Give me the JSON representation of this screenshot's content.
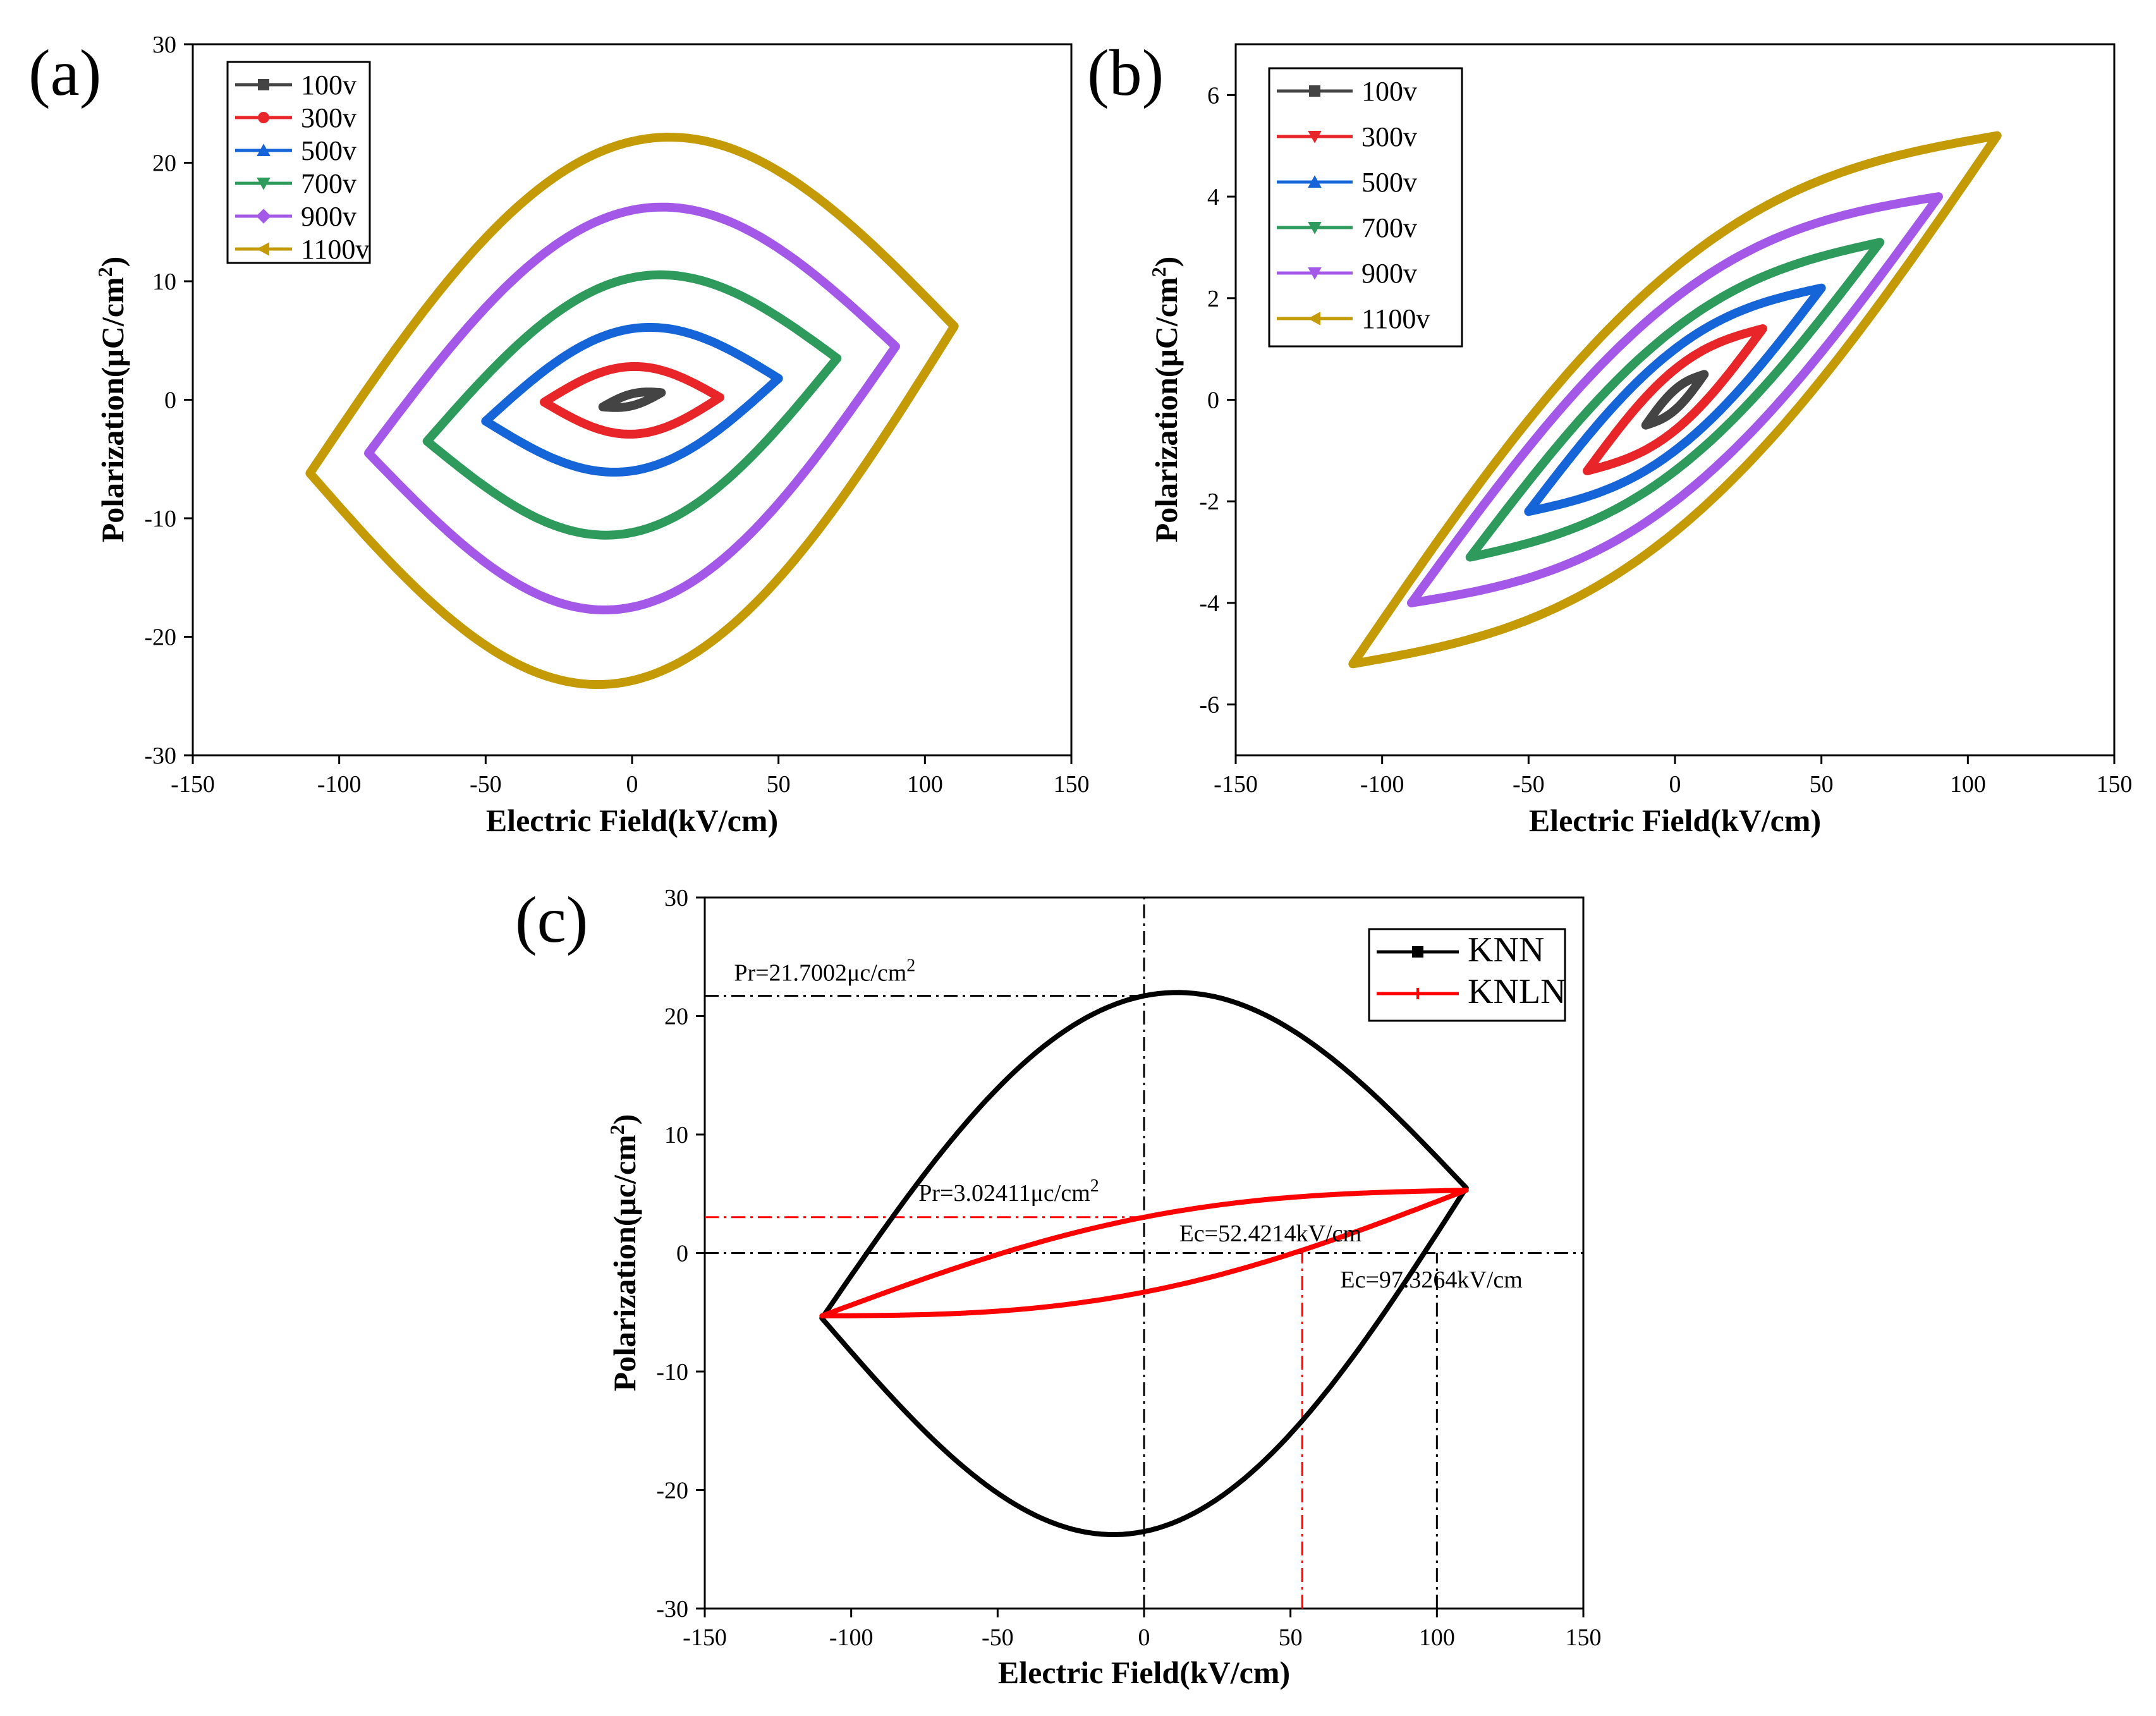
{
  "colors": {
    "100v": "#444444",
    "300v": "#e8262a",
    "500v": "#1565d8",
    "700v": "#2e9b5d",
    "900v": "#a358e8",
    "1100v": "#c49a06",
    "KNN": "#000000",
    "KNLN": "#ff0000"
  },
  "chart_data": [
    {
      "panel": "(a)",
      "type": "line",
      "xlabel": "Electric Field(kV/cm)",
      "ylabel_main": "Polarization(μC/cm",
      "ylabel_sup": "2",
      "ylabel_tail": ")",
      "xlim": [
        -150,
        150
      ],
      "ylim": [
        -30,
        30
      ],
      "xticks": [
        -150,
        -100,
        -50,
        0,
        50,
        100,
        150
      ],
      "yticks": [
        -30,
        -20,
        -10,
        0,
        10,
        20,
        30
      ],
      "legend_position": "top-left",
      "series": [
        {
          "name": "100v",
          "color_key": "100v",
          "marker": "square",
          "loop": {
            "emax": 10,
            "pmax": 0.6,
            "ptop": 0.5,
            "pbot": -0.5
          }
        },
        {
          "name": "300v",
          "color_key": "300v",
          "marker": "circle",
          "loop": {
            "emax": 30,
            "pmax": 0.2,
            "ptop": 2.8,
            "pbot": -2.9
          }
        },
        {
          "name": "500v",
          "color_key": "500v",
          "marker": "triangle-up",
          "loop": {
            "emax": 50,
            "pmax": 1.8,
            "ptop": 6.0,
            "pbot": -6.0
          }
        },
        {
          "name": "700v",
          "color_key": "700v",
          "marker": "triangle-down",
          "loop": {
            "emax": 70,
            "pmax": 3.5,
            "ptop": 10.3,
            "pbot": -11.2
          }
        },
        {
          "name": "900v",
          "color_key": "900v",
          "marker": "diamond",
          "loop": {
            "emax": 90,
            "pmax": 4.5,
            "ptop": 16.0,
            "pbot": -17.5
          }
        },
        {
          "name": "1100v",
          "color_key": "1100v",
          "marker": "triangle-left",
          "loop": {
            "emax": 110,
            "pmax": 6.2,
            "ptop": 21.8,
            "pbot": -23.7
          }
        }
      ]
    },
    {
      "panel": "(b)",
      "type": "line",
      "xlabel": "Electric Field(kV/cm)",
      "ylabel_main": "Polarization(μC/cm",
      "ylabel_sup": "2",
      "ylabel_tail": ")",
      "xlim": [
        -150,
        150
      ],
      "ylim": [
        -7,
        7
      ],
      "xticks": [
        -150,
        -100,
        -50,
        0,
        50,
        100,
        150
      ],
      "yticks": [
        -6,
        -4,
        -2,
        0,
        2,
        4,
        6
      ],
      "legend_position": "top-left",
      "series": [
        {
          "name": "100v",
          "color_key": "100v",
          "marker": "square",
          "loop": {
            "emax": 10,
            "pmax": 0.5,
            "ptop": 0.2,
            "pbot": -0.2
          }
        },
        {
          "name": "300v",
          "color_key": "300v",
          "marker": "triangle-down",
          "loop": {
            "emax": 30,
            "pmax": 1.4,
            "ptop": 0.6,
            "pbot": -0.6
          }
        },
        {
          "name": "500v",
          "color_key": "500v",
          "marker": "triangle-up",
          "loop": {
            "emax": 50,
            "pmax": 2.2,
            "ptop": 1.0,
            "pbot": -1.0
          }
        },
        {
          "name": "700v",
          "color_key": "700v",
          "marker": "triangle-down",
          "loop": {
            "emax": 70,
            "pmax": 3.1,
            "ptop": 1.4,
            "pbot": -1.4
          }
        },
        {
          "name": "900v",
          "color_key": "900v",
          "marker": "triangle-down",
          "loop": {
            "emax": 90,
            "pmax": 4.0,
            "ptop": 2.0,
            "pbot": -2.0
          }
        },
        {
          "name": "1100v",
          "color_key": "1100v",
          "marker": "triangle-left",
          "loop": {
            "emax": 110,
            "pmax": 5.2,
            "ptop": 2.6,
            "pbot": -2.6
          }
        }
      ]
    },
    {
      "panel": "(c)",
      "type": "line",
      "xlabel": "Electric Field(kV/cm)",
      "ylabel_main": "Polarization(μc/cm",
      "ylabel_sup": "2",
      "ylabel_tail": ")",
      "xlim": [
        -150,
        150
      ],
      "ylim": [
        -30,
        30
      ],
      "xticks": [
        -150,
        -100,
        -50,
        0,
        50,
        100,
        150
      ],
      "yticks": [
        -30,
        -20,
        -10,
        0,
        10,
        20,
        30
      ],
      "legend_position": "top-right",
      "series": [
        {
          "name": "KNN",
          "color_key": "KNN",
          "marker": "square",
          "loop": {
            "emax": 110,
            "pmax": 5.5,
            "ptop": 21.7,
            "pbot": -23.5
          }
        },
        {
          "name": "KNLN",
          "color_key": "KNLN",
          "marker": "plus",
          "loop": {
            "emax": 110,
            "pmax": 5.3,
            "ptop": 3.02,
            "pbot": -3.3
          }
        }
      ],
      "annotations": [
        {
          "text": "Pr=21.7002μc/cm",
          "sup": "2",
          "at_x": -140,
          "at_y": 23.0
        },
        {
          "text": "Pr=3.02411μc/cm",
          "sup": "2",
          "at_x": -77,
          "at_y": 4.4
        },
        {
          "text": "Ec=52.4214kV/cm",
          "sup": "",
          "at_x": 12,
          "at_y": 1.0
        },
        {
          "text": "Ec=97.3264kV/cm",
          "sup": "",
          "at_x": 67,
          "at_y": -2.9
        }
      ],
      "reference_lines": [
        {
          "orientation": "horizontal",
          "value": 21.7002,
          "from": -150,
          "to": 0,
          "color_key": "KNN"
        },
        {
          "orientation": "horizontal",
          "value": 0,
          "from": -150,
          "to": 150,
          "color_key": "KNN"
        },
        {
          "orientation": "vertical",
          "value": 0,
          "from": -30,
          "to": 30,
          "color_key": "KNN"
        },
        {
          "orientation": "vertical",
          "value": 100,
          "from": -30,
          "to": 0,
          "color_key": "KNN"
        },
        {
          "orientation": "horizontal",
          "value": 3.02411,
          "from": -150,
          "to": 0,
          "color_key": "KNLN"
        },
        {
          "orientation": "vertical",
          "value": 54,
          "from": -30,
          "to": 0,
          "color_key": "KNLN"
        }
      ]
    }
  ]
}
